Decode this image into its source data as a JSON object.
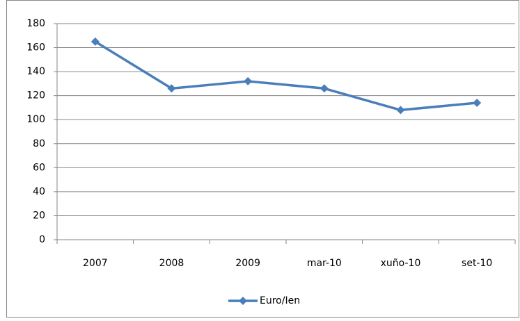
{
  "chart_data": {
    "type": "line",
    "categories": [
      "2007",
      "2008",
      "2009",
      "mar-10",
      "xuño-10",
      "set-10"
    ],
    "series": [
      {
        "name": "Euro/Ien",
        "color": "#4a7ebb",
        "values": [
          165,
          126,
          132,
          126,
          108,
          114
        ]
      }
    ],
    "ylim": [
      0,
      180
    ],
    "yticks": [
      0,
      20,
      40,
      60,
      80,
      100,
      120,
      140,
      160,
      180
    ],
    "grid": true,
    "legend": "bottom"
  }
}
